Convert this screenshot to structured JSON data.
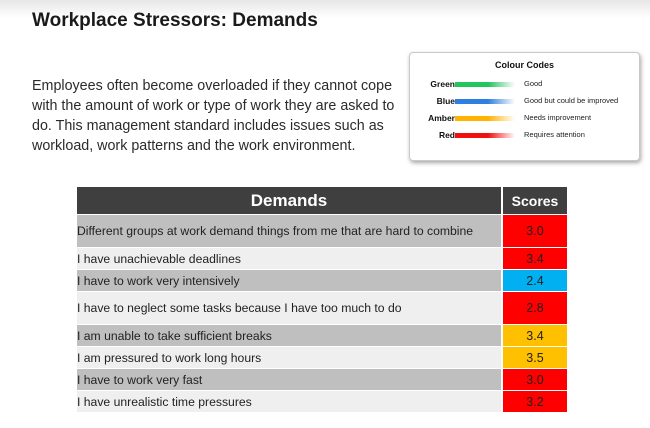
{
  "title": "Workplace Stressors: Demands",
  "intro": "Employees often become overloaded if they cannot cope with the amount of work or type of work they are asked to do. This management standard includes issues such as workload, work patterns and the work environment.",
  "legend": {
    "title": "Colour Codes",
    "items": [
      {
        "name": "Green",
        "description": "Good",
        "color": "#22c55e"
      },
      {
        "name": "Blue",
        "description": "Good but could be improved",
        "color": "#2f7fe0"
      },
      {
        "name": "Amber",
        "description": "Needs improvement",
        "color": "#ffb300"
      },
      {
        "name": "Red",
        "description": "Requires attention",
        "color": "#f01010"
      }
    ]
  },
  "table": {
    "header_item": "Demands",
    "header_score": "Scores",
    "rows": [
      {
        "item": "Different groups at work demand things from me that are hard to combine",
        "score": "3.0",
        "status": "red"
      },
      {
        "item": "I have unachievable deadlines",
        "score": "3.4",
        "status": "red"
      },
      {
        "item": "I have to work very intensively",
        "score": "2.4",
        "status": "blue"
      },
      {
        "item": "I have to neglect some tasks because I have too much to do",
        "score": "2.8",
        "status": "red"
      },
      {
        "item": "I am unable to take sufficient breaks",
        "score": "3.4",
        "status": "amber"
      },
      {
        "item": "I am pressured to work long hours",
        "score": "3.5",
        "status": "amber"
      },
      {
        "item": "I have to work very fast",
        "score": "3.0",
        "status": "red"
      },
      {
        "item": "I have unrealistic time pressures",
        "score": "3.2",
        "status": "red"
      }
    ]
  },
  "status_colors": {
    "red": "#ff0000",
    "blue": "#00b0f0",
    "amber": "#ffc000",
    "green": "#00b050"
  }
}
